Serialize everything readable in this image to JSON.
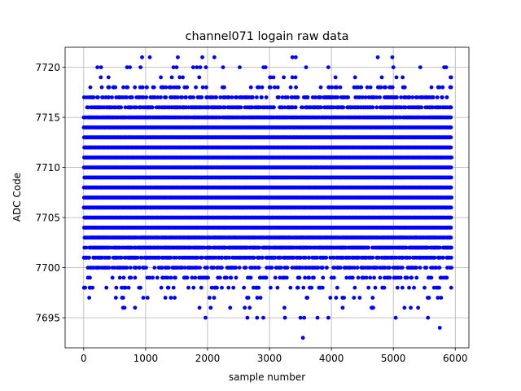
{
  "chart_data": {
    "type": "scatter",
    "title": "channel071 logain raw data",
    "xlabel": "sample number",
    "ylabel": "ADC Code",
    "xlim": [
      -300,
      6220
    ],
    "ylim": [
      7692,
      7722
    ],
    "xticks": [
      0,
      1000,
      2000,
      3000,
      4000,
      5000,
      6000
    ],
    "yticks": [
      7695,
      7700,
      7705,
      7710,
      7715,
      7720
    ],
    "grid": true,
    "marker_color": "#0000ff",
    "n_samples": 5940,
    "value_levels": [
      7693,
      7694,
      7695,
      7696,
      7697,
      7698,
      7699,
      7700,
      7701,
      7702,
      7703,
      7704,
      7705,
      7706,
      7707,
      7708,
      7709,
      7710,
      7711,
      7712,
      7713,
      7714,
      7715,
      7716,
      7717,
      7718,
      7719,
      7720,
      7721
    ],
    "level_density": [
      0,
      0,
      0.01,
      0.02,
      0.05,
      0.12,
      0.2,
      0.35,
      0.55,
      0.75,
      0.9,
      1,
      1,
      1,
      1,
      1,
      1,
      1,
      1,
      1,
      1,
      1,
      0.9,
      0.6,
      0.35,
      0.15,
      0.05,
      0.02,
      0.01
    ],
    "outliers": [
      {
        "x": 3540,
        "y": 7693
      },
      {
        "x": 5750,
        "y": 7694
      },
      {
        "x": 2800,
        "y": 7695
      },
      {
        "x": 2900,
        "y": 7695
      },
      {
        "x": 3250,
        "y": 7695
      },
      {
        "x": 3500,
        "y": 7695
      },
      {
        "x": 3560,
        "y": 7695
      },
      {
        "x": 3950,
        "y": 7695
      },
      {
        "x": 2050,
        "y": 7696
      },
      {
        "x": 2600,
        "y": 7696
      },
      {
        "x": 2680,
        "y": 7696
      },
      {
        "x": 4650,
        "y": 7696
      },
      {
        "x": 5180,
        "y": 7696
      },
      {
        "x": 5400,
        "y": 7696
      },
      {
        "x": 1520,
        "y": 7721
      },
      {
        "x": 3370,
        "y": 7721
      },
      {
        "x": 1450,
        "y": 7720
      },
      {
        "x": 1500,
        "y": 7720
      },
      {
        "x": 2250,
        "y": 7720
      },
      {
        "x": 3950,
        "y": 7720
      },
      {
        "x": 5000,
        "y": 7720
      },
      {
        "x": 400,
        "y": 7719
      },
      {
        "x": 1550,
        "y": 7719
      },
      {
        "x": 1600,
        "y": 7719
      },
      {
        "x": 3420,
        "y": 7719
      },
      {
        "x": 5050,
        "y": 7719
      },
      {
        "x": 5150,
        "y": 7719
      }
    ]
  }
}
